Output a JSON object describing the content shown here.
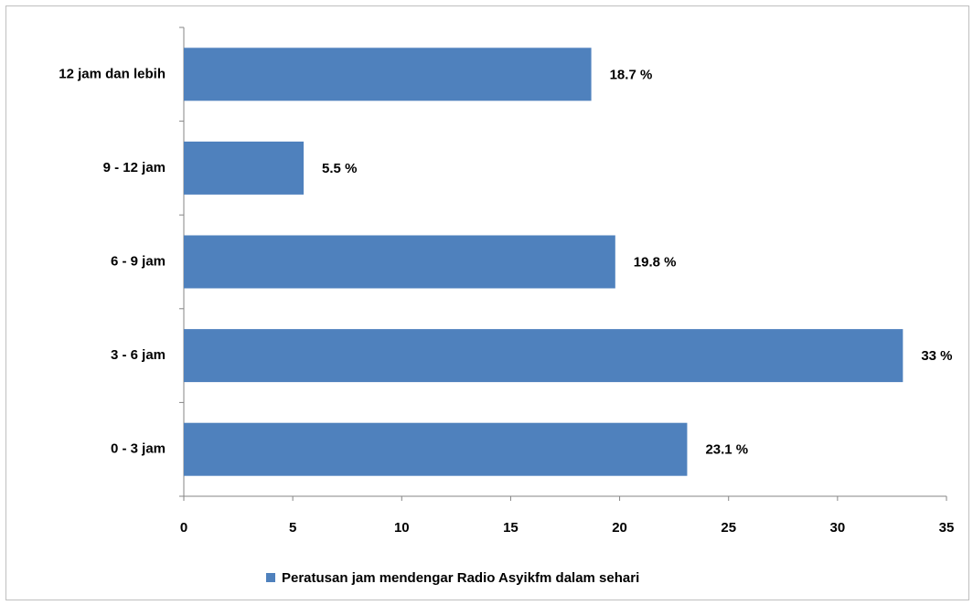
{
  "chart_data": {
    "type": "bar",
    "orientation": "horizontal",
    "categories": [
      "0 - 3 jam",
      "3 - 6 jam",
      "6 - 9 jam",
      "9 - 12 jam",
      "12 jam dan lebih"
    ],
    "series": [
      {
        "name": "Peratusan jam mendengar Radio Asyikfm dalam sehari",
        "color": "#4f81bd",
        "values": [
          23.1,
          33,
          19.8,
          5.5,
          18.7
        ],
        "value_labels": [
          "23.1 %",
          "33 %",
          "19.8 %",
          "5.5 %",
          "18.7 %"
        ]
      }
    ],
    "xlim": [
      0,
      35
    ],
    "xticks": [
      0,
      5,
      10,
      15,
      20,
      25,
      30,
      35
    ],
    "grid": false,
    "legend": "bottom"
  }
}
